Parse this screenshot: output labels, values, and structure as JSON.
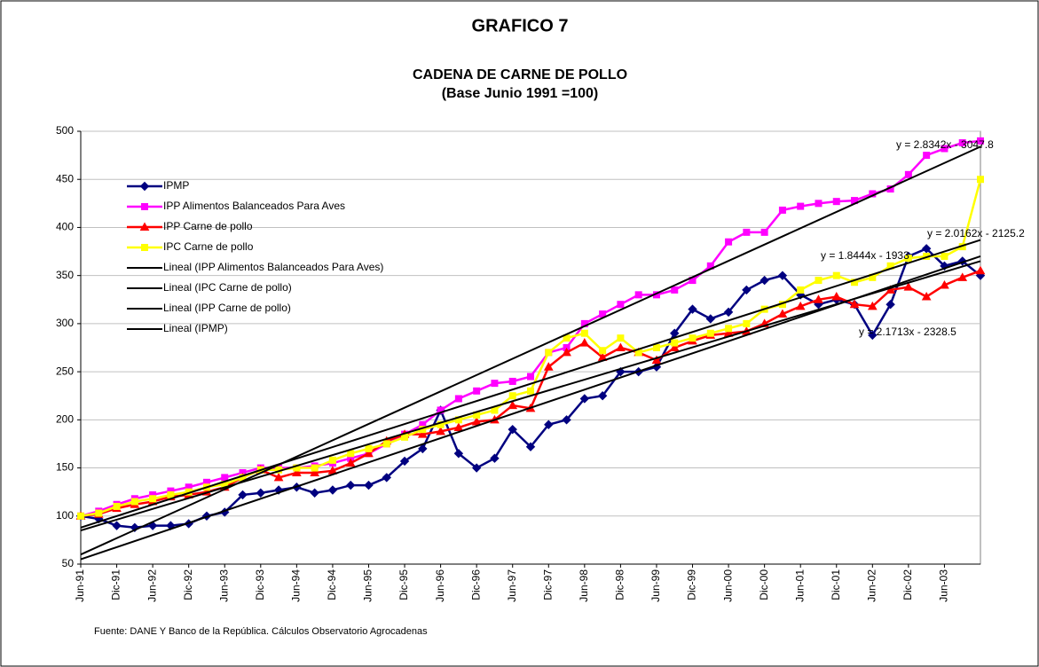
{
  "chart_data": {
    "type": "line",
    "title": "GRAFICO 7",
    "subtitle": "CADENA DE CARNE DE POLLO",
    "subtitle2": "(Base Junio 1991 =100)",
    "source": "Fuente: DANE Y Banco de la República. Cálculos Observatorio Agrocadenas",
    "categories": [
      "Jun-91",
      null,
      "Dic-91",
      null,
      "Jun-92",
      null,
      "Dic-92",
      null,
      "Jun-93",
      null,
      "Dic-93",
      null,
      "Jun-94",
      null,
      "Dic-94",
      null,
      "Jun-95",
      null,
      "Dic-95",
      null,
      "Jun-96",
      null,
      "Dic-96",
      null,
      "Jun-97",
      null,
      "Dic-97",
      null,
      "Jun-98",
      null,
      "Dic-98",
      null,
      "Jun-99",
      null,
      "Dic-99",
      null,
      "Jun-00",
      null,
      "Dic-00",
      null,
      "Jun-01",
      null,
      "Dic-01",
      null,
      "Jun-02",
      null,
      "Dic-02",
      null,
      "Jun-03",
      null,
      null
    ],
    "ylim": [
      50,
      500
    ],
    "yticks": [
      50,
      100,
      150,
      200,
      250,
      300,
      350,
      400,
      450,
      500
    ],
    "grid": true,
    "series": [
      {
        "name": "IPMP",
        "color": "#000080",
        "marker": "diamond",
        "values": [
          100,
          97,
          90,
          88,
          90,
          90,
          92,
          100,
          104,
          122,
          124,
          127,
          130,
          124,
          127,
          132,
          132,
          140,
          157,
          170,
          210,
          165,
          150,
          160,
          190,
          172,
          195,
          200,
          222,
          225,
          250,
          250,
          255,
          290,
          315,
          305,
          312,
          335,
          345,
          350,
          330,
          320,
          325,
          320,
          288,
          320,
          370,
          378,
          360,
          365,
          350
        ]
      },
      {
        "name": "IPP Alimentos Balanceados Para Aves",
        "color": "#ff00ff",
        "marker": "square",
        "values": [
          100,
          105,
          112,
          118,
          122,
          126,
          130,
          135,
          140,
          145,
          150,
          150,
          150,
          152,
          155,
          160,
          165,
          175,
          185,
          195,
          210,
          222,
          230,
          238,
          240,
          245,
          270,
          275,
          300,
          310,
          320,
          330,
          330,
          335,
          345,
          360,
          385,
          395,
          395,
          418,
          422,
          425,
          427,
          428,
          435,
          440,
          455,
          475,
          482,
          488,
          490
        ]
      },
      {
        "name": "IPP Carne de pollo",
        "color": "#ff0000",
        "marker": "triangle",
        "values": [
          100,
          102,
          108,
          112,
          115,
          120,
          122,
          125,
          130,
          140,
          148,
          140,
          145,
          145,
          147,
          155,
          165,
          178,
          185,
          185,
          188,
          192,
          198,
          200,
          215,
          212,
          255,
          270,
          280,
          265,
          275,
          270,
          262,
          275,
          282,
          288,
          290,
          292,
          300,
          310,
          318,
          325,
          328,
          320,
          318,
          335,
          338,
          328,
          340,
          348,
          355
        ]
      },
      {
        "name": "IPC Carne de pollo",
        "color": "#ffff00",
        "marker": "square",
        "values": [
          100,
          103,
          110,
          115,
          118,
          122,
          125,
          130,
          133,
          140,
          148,
          148,
          150,
          150,
          158,
          165,
          170,
          175,
          182,
          190,
          195,
          200,
          205,
          210,
          225,
          230,
          270,
          285,
          290,
          272,
          285,
          270,
          275,
          280,
          285,
          290,
          295,
          300,
          315,
          320,
          335,
          345,
          350,
          343,
          348,
          360,
          368,
          370,
          370,
          380,
          450
        ]
      }
    ],
    "trendlines": [
      {
        "name": "Lineal (IPP Alimentos Balanceados Para Aves)",
        "equation": "y = 2.8342x - 3047.8",
        "values": [
          60,
          484
        ]
      },
      {
        "name": "Lineal (IPC Carne de pollo)",
        "equation": "y = 2.0162x - 2125.2",
        "values": [
          88,
          387
        ]
      },
      {
        "name": "Lineal (IPP Carne de pollo)",
        "equation": "y = 1.8444x - 1933",
        "values": [
          85,
          365
        ]
      },
      {
        "name": "Lineal (IPMP)",
        "equation": "y = 2.1713x - 2328.5",
        "values": [
          55,
          370
        ]
      }
    ]
  }
}
